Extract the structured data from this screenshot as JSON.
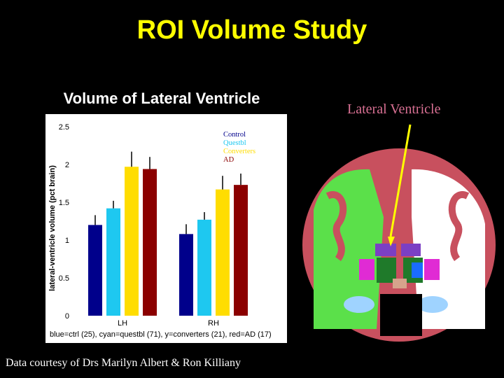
{
  "slide": {
    "title": "ROI Volume Study",
    "credit": "Data courtesy of Drs Marilyn Albert & Ron Killiany",
    "brain_label": "Lateral Ventricle"
  },
  "colors": {
    "title": "#ffff00",
    "brain_label": "#d87093",
    "control": "#00008b",
    "questbl": "#1ec8f0",
    "converters": "#ffdd00",
    "ad": "#8b0000"
  },
  "chart_data": {
    "type": "bar",
    "title": "Volume of Lateral Ventricle",
    "ylabel": "lateral-ventricle volume (pct brain)",
    "xlabel": "",
    "caption": "blue=ctrl (25), cyan=questbl (71), y=converters (21), red=AD (17)",
    "categories": [
      "LH",
      "RH"
    ],
    "ylim": [
      0,
      2.5
    ],
    "yticks": [
      0,
      0.5,
      1,
      1.5,
      2,
      2.5
    ],
    "ytick_labels": [
      "0",
      "0.5",
      "1",
      "1.5",
      "2",
      "2.5"
    ],
    "series": [
      {
        "name": "Control",
        "values": [
          1.2,
          1.08
        ],
        "error": [
          0.13,
          0.13
        ],
        "color": "#00008b"
      },
      {
        "name": "Questbl",
        "values": [
          1.42,
          1.27
        ],
        "error": [
          0.1,
          0.1
        ],
        "color": "#1ec8f0"
      },
      {
        "name": "Converters",
        "values": [
          1.97,
          1.67
        ],
        "error": [
          0.2,
          0.18
        ],
        "color": "#ffdd00"
      },
      {
        "name": "AD",
        "values": [
          1.94,
          1.73
        ],
        "error": [
          0.16,
          0.15
        ],
        "color": "#8b0000"
      }
    ],
    "legend_placement": "top-right",
    "grid": false
  }
}
